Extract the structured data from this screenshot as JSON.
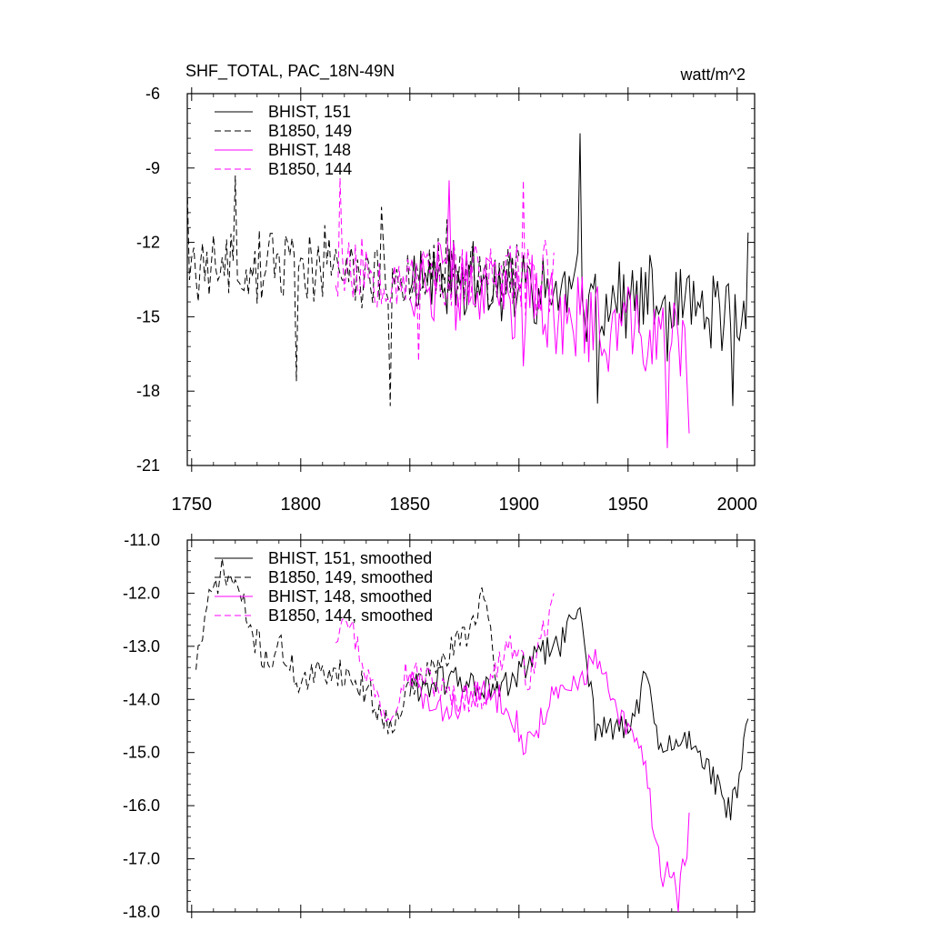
{
  "chart_data": [
    {
      "type": "line",
      "title": "SHF_TOTAL, PAC_18N-49N",
      "units": "watt/m^2",
      "xlim": [
        1748,
        2008
      ],
      "ylim": [
        -21,
        -6
      ],
      "yticks": [
        -6,
        -9,
        -12,
        -15,
        -18,
        -21
      ],
      "ytick_labels": [
        "-6",
        "-9",
        "-12",
        "-15",
        "-18",
        "-21"
      ],
      "xticks": [
        1750,
        1800,
        1850,
        1900,
        1950,
        2000
      ],
      "xtick_labels": [
        "1750",
        "1800",
        "1850",
        "1900",
        "1950",
        "2000"
      ],
      "legend_position": "top-left",
      "series": [
        {
          "name": "BHIST, 151",
          "color": "#000000",
          "dash": "solid",
          "start": 1850,
          "end": 2005,
          "base": -13.2,
          "trend": -1.8,
          "noise": 1.6,
          "seed": 11,
          "anchors": [
            [
              1928,
              -7.6
            ],
            [
              1936,
              -18.5
            ],
            [
              1998,
              -18.6
            ],
            [
              2005,
              -11.6
            ]
          ]
        },
        {
          "name": "B1850, 149",
          "color": "#000000",
          "dash": "dashed",
          "start": 1748,
          "end": 1900,
          "base": -12.8,
          "trend": -0.5,
          "noise": 1.4,
          "seed": 23,
          "anchors": [
            [
              1748,
              -9.8
            ],
            [
              1770,
              -9.3
            ],
            [
              1798,
              -17.6
            ],
            [
              1841,
              -18.6
            ]
          ]
        },
        {
          "name": "BHIST, 148",
          "color": "#ff00ff",
          "dash": "solid",
          "start": 1850,
          "end": 1978,
          "base": -13.4,
          "trend": -2.8,
          "noise": 1.7,
          "seed": 37,
          "anchors": [
            [
              1868,
              -9.5
            ],
            [
              1968,
              -20.3
            ],
            [
              1978,
              -19.7
            ]
          ]
        },
        {
          "name": "B1850, 144",
          "color": "#ff00ff",
          "dash": "dashed",
          "start": 1816,
          "end": 1916,
          "base": -13.0,
          "trend": -0.6,
          "noise": 1.5,
          "seed": 53,
          "anchors": [
            [
              1818,
              -9.4
            ],
            [
              1902,
              -9.5
            ],
            [
              1854,
              -16.8
            ]
          ]
        }
      ]
    },
    {
      "type": "line",
      "title": "",
      "xlim": [
        1748,
        2008
      ],
      "ylim": [
        -18.0,
        -11.0
      ],
      "yticks": [
        -11.0,
        -12.0,
        -13.0,
        -14.0,
        -15.0,
        -16.0,
        -17.0,
        -18.0
      ],
      "ytick_labels": [
        "-11.0",
        "-12.0",
        "-13.0",
        "-14.0",
        "-15.0",
        "-16.0",
        "-17.0",
        "-18.0"
      ],
      "legend_position": "top-left",
      "series": [
        {
          "name": "BHIST, 151, smoothed",
          "color": "#000000",
          "dash": "solid",
          "start": 1850,
          "end": 2005,
          "seed": 61,
          "wobble": 0.3,
          "path": [
            [
              1850,
              -13.8
            ],
            [
              1870,
              -13.6
            ],
            [
              1890,
              -13.9
            ],
            [
              1905,
              -13.3
            ],
            [
              1920,
              -12.9
            ],
            [
              1928,
              -12.2
            ],
            [
              1935,
              -14.5
            ],
            [
              1950,
              -14.6
            ],
            [
              1958,
              -13.6
            ],
            [
              1965,
              -15.0
            ],
            [
              1980,
              -14.7
            ],
            [
              1990,
              -15.6
            ],
            [
              1995,
              -16.1
            ],
            [
              2000,
              -15.8
            ],
            [
              2005,
              -14.4
            ]
          ]
        },
        {
          "name": "B1850, 149, smoothed",
          "color": "#000000",
          "dash": "dashed",
          "start": 1752,
          "end": 1890,
          "seed": 71,
          "wobble": 0.3,
          "path": [
            [
              1752,
              -13.3
            ],
            [
              1758,
              -12.2
            ],
            [
              1763,
              -11.6
            ],
            [
              1770,
              -11.8
            ],
            [
              1778,
              -12.8
            ],
            [
              1785,
              -13.3
            ],
            [
              1790,
              -13.0
            ],
            [
              1800,
              -13.7
            ],
            [
              1815,
              -13.4
            ],
            [
              1830,
              -13.8
            ],
            [
              1840,
              -14.5
            ],
            [
              1850,
              -13.8
            ],
            [
              1865,
              -13.3
            ],
            [
              1878,
              -12.6
            ],
            [
              1883,
              -12.0
            ],
            [
              1890,
              -13.6
            ]
          ]
        },
        {
          "name": "BHIST, 148, smoothed",
          "color": "#ff00ff",
          "dash": "solid",
          "start": 1850,
          "end": 1978,
          "seed": 83,
          "wobble": 0.3,
          "path": [
            [
              1850,
              -13.6
            ],
            [
              1862,
              -14.3
            ],
            [
              1880,
              -13.9
            ],
            [
              1895,
              -14.0
            ],
            [
              1903,
              -14.9
            ],
            [
              1915,
              -14.0
            ],
            [
              1925,
              -13.8
            ],
            [
              1935,
              -13.2
            ],
            [
              1945,
              -14.3
            ],
            [
              1952,
              -14.7
            ],
            [
              1958,
              -15.2
            ],
            [
              1962,
              -16.5
            ],
            [
              1966,
              -17.3
            ],
            [
              1970,
              -17.2
            ],
            [
              1973,
              -17.8
            ],
            [
              1976,
              -17.0
            ],
            [
              1978,
              -16.4
            ]
          ]
        },
        {
          "name": "B1850, 144, smoothed",
          "color": "#ff00ff",
          "dash": "dashed",
          "start": 1816,
          "end": 1916,
          "seed": 97,
          "wobble": 0.3,
          "path": [
            [
              1816,
              -12.8
            ],
            [
              1820,
              -12.2
            ],
            [
              1826,
              -13.0
            ],
            [
              1833,
              -13.8
            ],
            [
              1840,
              -14.3
            ],
            [
              1848,
              -13.5
            ],
            [
              1858,
              -13.6
            ],
            [
              1870,
              -14.0
            ],
            [
              1885,
              -13.9
            ],
            [
              1895,
              -12.9
            ],
            [
              1905,
              -13.6
            ],
            [
              1912,
              -12.6
            ],
            [
              1916,
              -12.3
            ]
          ]
        }
      ]
    }
  ]
}
